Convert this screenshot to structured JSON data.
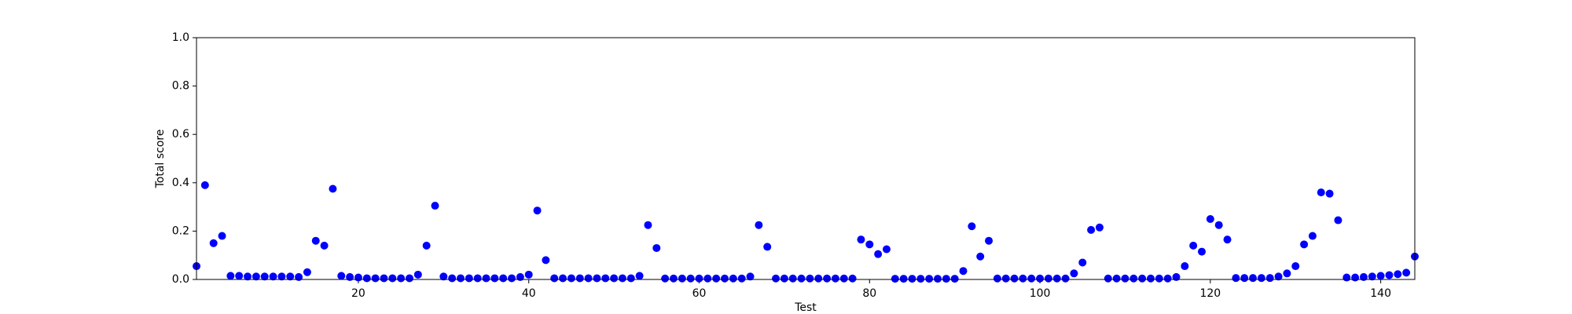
{
  "chart_data": {
    "type": "scatter",
    "x_label": "Test",
    "y_label": "Total score",
    "x": [
      1,
      2,
      3,
      4,
      5,
      6,
      7,
      8,
      9,
      10,
      11,
      12,
      13,
      14,
      15,
      16,
      17,
      18,
      19,
      20,
      21,
      22,
      23,
      24,
      25,
      26,
      27,
      28,
      29,
      30,
      31,
      32,
      33,
      34,
      35,
      36,
      37,
      38,
      39,
      40,
      41,
      42,
      43,
      44,
      45,
      46,
      47,
      48,
      49,
      50,
      51,
      52,
      53,
      54,
      55,
      56,
      57,
      58,
      59,
      60,
      61,
      62,
      63,
      64,
      65,
      66,
      67,
      68,
      69,
      70,
      71,
      72,
      73,
      74,
      75,
      76,
      77,
      78,
      79,
      80,
      81,
      82,
      83,
      84,
      85,
      86,
      87,
      88,
      89,
      90,
      91,
      92,
      93,
      94,
      95,
      96,
      97,
      98,
      99,
      100,
      101,
      102,
      103,
      104,
      105,
      106,
      107,
      108,
      109,
      110,
      111,
      112,
      113,
      114,
      115,
      116,
      117,
      118,
      119,
      120,
      121,
      122,
      123,
      124,
      125,
      126,
      127,
      128,
      129,
      130,
      131,
      132,
      133,
      134,
      135,
      136,
      137,
      138,
      139,
      140,
      141,
      142,
      143,
      144
    ],
    "values": [
      0.055,
      0.39,
      0.15,
      0.18,
      0.015,
      0.015,
      0.012,
      0.012,
      0.012,
      0.012,
      0.012,
      0.012,
      0.01,
      0.03,
      0.16,
      0.14,
      0.375,
      0.015,
      0.01,
      0.008,
      0.005,
      0.005,
      0.005,
      0.005,
      0.005,
      0.005,
      0.02,
      0.14,
      0.305,
      0.012,
      0.005,
      0.005,
      0.005,
      0.005,
      0.005,
      0.005,
      0.005,
      0.005,
      0.01,
      0.02,
      0.285,
      0.08,
      0.005,
      0.005,
      0.005,
      0.005,
      0.005,
      0.005,
      0.005,
      0.005,
      0.005,
      0.005,
      0.015,
      0.225,
      0.13,
      0.004,
      0.004,
      0.004,
      0.004,
      0.004,
      0.004,
      0.004,
      0.004,
      0.004,
      0.004,
      0.012,
      0.225,
      0.135,
      0.004,
      0.004,
      0.004,
      0.004,
      0.004,
      0.004,
      0.004,
      0.004,
      0.004,
      0.004,
      0.165,
      0.145,
      0.105,
      0.125,
      0.003,
      0.003,
      0.003,
      0.003,
      0.003,
      0.003,
      0.003,
      0.003,
      0.035,
      0.22,
      0.095,
      0.16,
      0.004,
      0.004,
      0.004,
      0.004,
      0.004,
      0.004,
      0.004,
      0.004,
      0.004,
      0.025,
      0.07,
      0.205,
      0.215,
      0.004,
      0.004,
      0.004,
      0.004,
      0.004,
      0.004,
      0.004,
      0.004,
      0.01,
      0.055,
      0.14,
      0.115,
      0.25,
      0.225,
      0.165,
      0.006,
      0.006,
      0.006,
      0.006,
      0.006,
      0.012,
      0.025,
      0.055,
      0.145,
      0.18,
      0.36,
      0.355,
      0.245,
      0.008,
      0.008,
      0.01,
      0.012,
      0.015,
      0.018,
      0.022,
      0.028,
      0.095
    ],
    "color": "#0000ff",
    "xlim": [
      1,
      144
    ],
    "xticks": [
      20,
      40,
      60,
      80,
      100,
      120,
      140
    ],
    "ylim": [
      0,
      1
    ],
    "yticks": [
      {
        "value": 0,
        "label": "0.0"
      },
      {
        "value": 0.2,
        "label": "0.2"
      },
      {
        "value": 0.4,
        "label": "0.4"
      },
      {
        "value": 0.6,
        "label": "0.6"
      },
      {
        "value": 0.8,
        "label": "0.8"
      },
      {
        "value": 1,
        "label": "1.0"
      }
    ],
    "grid": false
  }
}
